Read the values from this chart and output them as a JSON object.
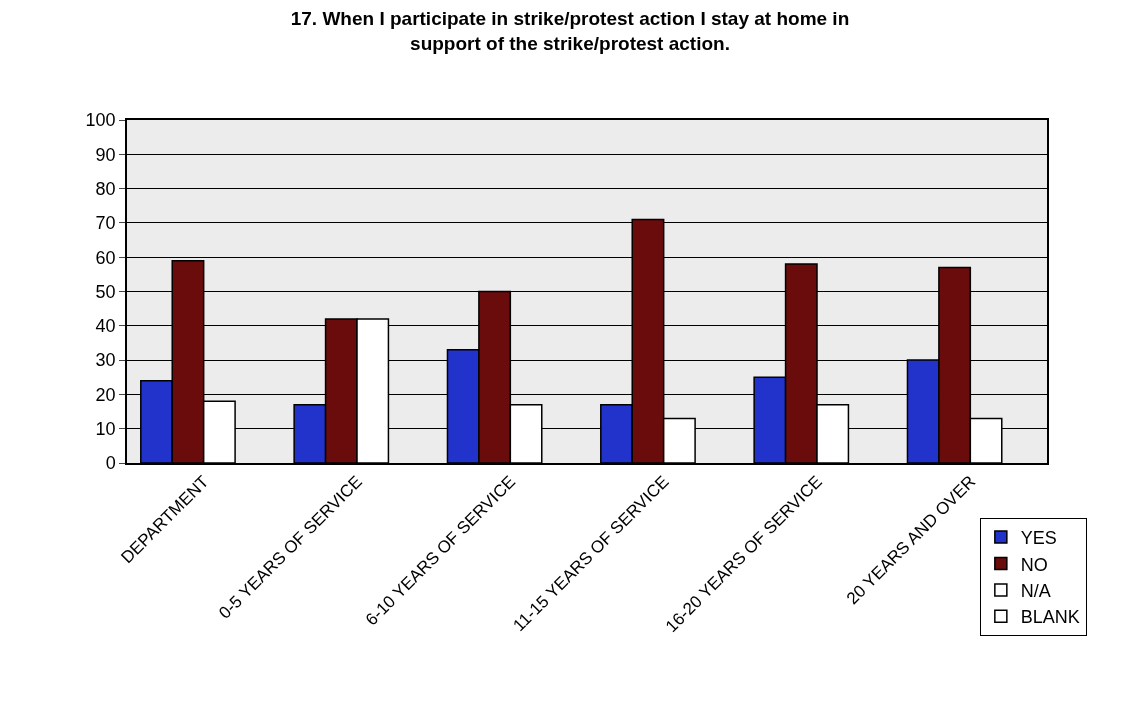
{
  "chart_data": {
    "type": "bar",
    "title": "17. When I participate in strike/protest action I stay at home in support of the strike/protest action.",
    "categories": [
      "DEPARTMENT",
      "0-5 YEARS OF SERVICE",
      "6-10 YEARS OF SERVICE",
      "11-15 YEARS OF SERVICE",
      "16-20 YEARS OF SERVICE",
      "20 YEARS AND OVER"
    ],
    "series": [
      {
        "name": "YES",
        "color": "#2233cc",
        "values": [
          24,
          17,
          33,
          17,
          25,
          30
        ]
      },
      {
        "name": "NO",
        "color": "#6b0c0c",
        "values": [
          59,
          42,
          50,
          71,
          58,
          57
        ]
      },
      {
        "name": "N/A",
        "color": "#ffffff",
        "values": [
          18,
          42,
          17,
          13,
          17,
          13
        ]
      },
      {
        "name": "BLANK",
        "color": "#ffffff",
        "values": [
          0,
          0,
          0,
          0,
          0,
          0
        ]
      }
    ],
    "ylim": [
      0,
      100
    ],
    "yticks": [
      0,
      10,
      20,
      30,
      40,
      50,
      60,
      70,
      80,
      90,
      100
    ],
    "grid": "y",
    "legend": "bottom right"
  }
}
